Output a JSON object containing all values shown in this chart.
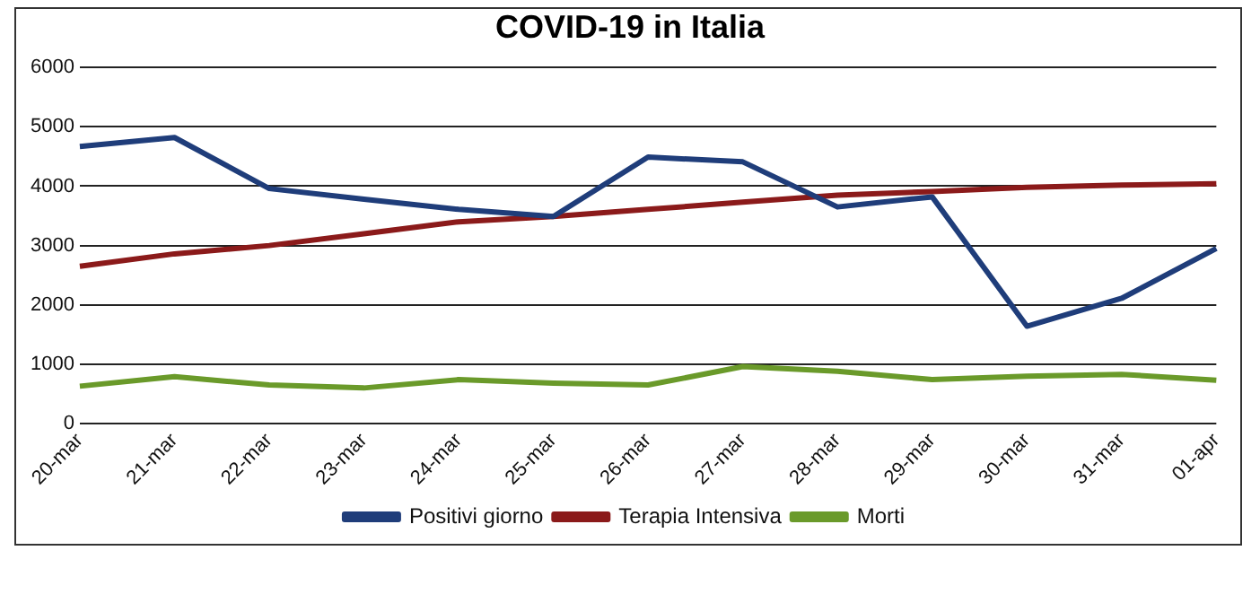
{
  "chart_data": {
    "type": "line",
    "title": "COVID-19 in Italia",
    "categories": [
      "20-mar",
      "21-mar",
      "22-mar",
      "23-mar",
      "24-mar",
      "25-mar",
      "26-mar",
      "27-mar",
      "28-mar",
      "29-mar",
      "30-mar",
      "31-mar",
      "01-apr"
    ],
    "series": [
      {
        "name": "Positivi giorno",
        "color": "#1f3d7a",
        "values": [
          4670,
          4820,
          3960,
          3780,
          3610,
          3490,
          4490,
          4410,
          3650,
          3820,
          1640,
          2110,
          2950
        ]
      },
      {
        "name": "Terapia Intensiva",
        "color": "#8b1a1a",
        "values": [
          2650,
          2860,
          3000,
          3200,
          3400,
          3490,
          3610,
          3730,
          3850,
          3910,
          3980,
          4020,
          4040
        ]
      },
      {
        "name": "Morti",
        "color": "#6a9a2a",
        "values": [
          630,
          790,
          650,
          600,
          740,
          680,
          650,
          960,
          880,
          740,
          800,
          830,
          730
        ]
      }
    ],
    "ylim": [
      0,
      6000
    ],
    "yticks": [
      0,
      1000,
      2000,
      3000,
      4000,
      5000,
      6000
    ],
    "grid": "y",
    "legend": "bottom",
    "marker": "none",
    "line_style": "solid"
  }
}
